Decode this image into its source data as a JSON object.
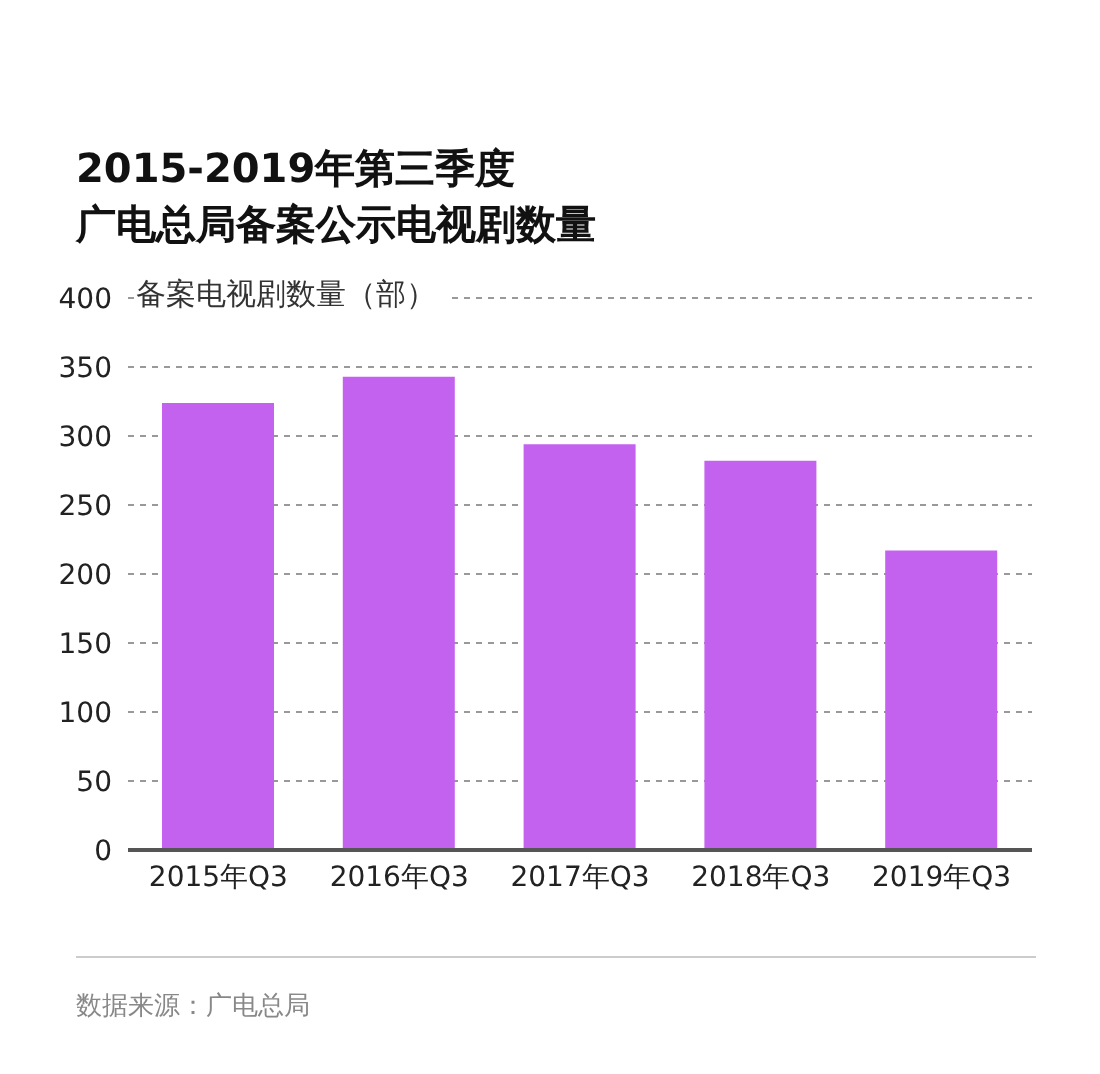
{
  "chart_data": {
    "type": "bar",
    "title": "2015-2019年第三季度",
    "subtitle": "广电总局备案公示电视剧数量",
    "ylabel": "备案电视剧数量（部）",
    "categories": [
      "2015年Q3",
      "2016年Q3",
      "2017年Q3",
      "2018年Q3",
      "2019年Q3"
    ],
    "values": [
      324,
      343,
      294,
      282,
      217
    ],
    "color": "#c462f0",
    "ylim": [
      0,
      400
    ],
    "yticks": [
      0,
      50,
      100,
      150,
      200,
      250,
      300,
      350,
      400
    ],
    "grid": "y",
    "annotations": [
      "数据来源：广电总局"
    ]
  }
}
